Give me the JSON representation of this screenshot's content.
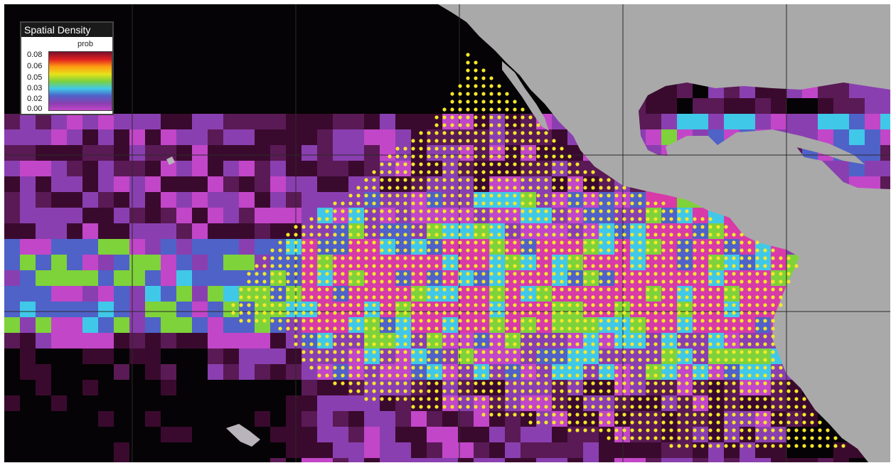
{
  "legend": {
    "title": "Spatial Density",
    "caption": "prob",
    "ticks": [
      "0.08",
      "0.06",
      "0.05",
      "0.03",
      "0.02",
      "0.00"
    ]
  },
  "colors": {
    "ocean_background": "#050305",
    "land": "#a9a9a9",
    "graticule": "#2b2b2b",
    "observation_dot": "#f5e829",
    "density_ramp": [
      "#7a0f2a",
      "#e02020",
      "#ff9a12",
      "#e7e21a",
      "#7ed23a",
      "#40c8e8",
      "#4f62c8",
      "#8a3fb0",
      "#c246c8",
      "#3a0a2e"
    ]
  },
  "layers": [
    "density-raster",
    "land-mask",
    "graticule",
    "observation-points"
  ]
}
